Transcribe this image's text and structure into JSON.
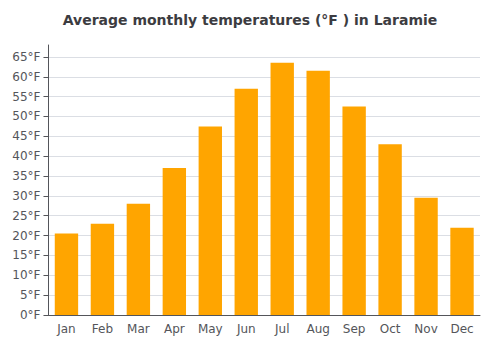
{
  "chart_data": {
    "type": "bar",
    "title": "Average monthly temperatures (°F ) in Laramie",
    "categories": [
      "Jan",
      "Feb",
      "Mar",
      "Apr",
      "May",
      "Jun",
      "Jul",
      "Aug",
      "Sep",
      "Oct",
      "Nov",
      "Dec"
    ],
    "values": [
      20.5,
      23.0,
      28.0,
      37.0,
      47.5,
      57.0,
      63.5,
      61.5,
      52.5,
      43.0,
      29.5,
      22.0
    ],
    "color": "#FFA500",
    "ylim": [
      0,
      68
    ],
    "yticks": [
      {
        "value": 0,
        "label": "0°F"
      },
      {
        "value": 5,
        "label": "5°F"
      },
      {
        "value": 10,
        "label": "10°F"
      },
      {
        "value": 15,
        "label": "15°F"
      },
      {
        "value": 20,
        "label": "20°F"
      },
      {
        "value": 25,
        "label": "25°F"
      },
      {
        "value": 30,
        "label": "30°F"
      },
      {
        "value": 35,
        "label": "35°F"
      },
      {
        "value": 40,
        "label": "40°F"
      },
      {
        "value": 45,
        "label": "45°F"
      },
      {
        "value": 50,
        "label": "50°F"
      },
      {
        "value": 55,
        "label": "55°F"
      },
      {
        "value": 60,
        "label": "60°F"
      },
      {
        "value": 65,
        "label": "65°F"
      }
    ],
    "grid": true
  }
}
